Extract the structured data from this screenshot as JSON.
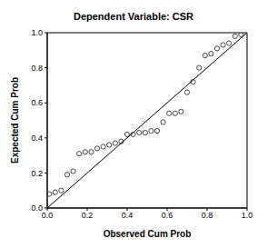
{
  "chart_data": {
    "type": "scatter",
    "title": "Dependent Variable: CSR",
    "x_label": "Observed Cum Prob",
    "y_label": "Expected Cum Prob",
    "xlim": [
      0,
      1
    ],
    "ylim": [
      0,
      1
    ],
    "xticks": [
      {
        "value": 0,
        "label": "0.0"
      },
      {
        "value": 0.2,
        "label": "0.2"
      },
      {
        "value": 0.4,
        "label": "0.4"
      },
      {
        "value": 0.6,
        "label": "0.6"
      },
      {
        "value": 0.8,
        "label": "0.8"
      },
      {
        "value": 1,
        "label": "1.0"
      }
    ],
    "yticks": [
      {
        "value": 0,
        "label": "0.0"
      },
      {
        "value": 0.2,
        "label": "0.2"
      },
      {
        "value": 0.4,
        "label": "0.4"
      },
      {
        "value": 0.6,
        "label": "0.6"
      },
      {
        "value": 0.8,
        "label": "0.8"
      },
      {
        "value": 1,
        "label": "1.0"
      }
    ],
    "grid": false,
    "series": [
      {
        "type": "scatter",
        "marker": "circle",
        "color": "#333333",
        "x": [
          0.01,
          0.04,
          0.07,
          0.1,
          0.13,
          0.16,
          0.19,
          0.22,
          0.25,
          0.28,
          0.31,
          0.34,
          0.37,
          0.4,
          0.43,
          0.46,
          0.49,
          0.52,
          0.55,
          0.58,
          0.61,
          0.64,
          0.67,
          0.7,
          0.73,
          0.76,
          0.79,
          0.82,
          0.85,
          0.88,
          0.91,
          0.94,
          0.97
        ],
        "values": [
          0.08,
          0.09,
          0.1,
          0.19,
          0.21,
          0.31,
          0.32,
          0.32,
          0.34,
          0.35,
          0.36,
          0.37,
          0.38,
          0.42,
          0.42,
          0.43,
          0.43,
          0.44,
          0.44,
          0.49,
          0.54,
          0.54,
          0.55,
          0.66,
          0.72,
          0.8,
          0.87,
          0.88,
          0.91,
          0.93,
          0.94,
          0.98,
          0.99
        ]
      },
      {
        "type": "line",
        "line_style": "solid",
        "color": "#000000",
        "x": [
          0,
          1
        ],
        "values": [
          0,
          1
        ]
      }
    ]
  }
}
